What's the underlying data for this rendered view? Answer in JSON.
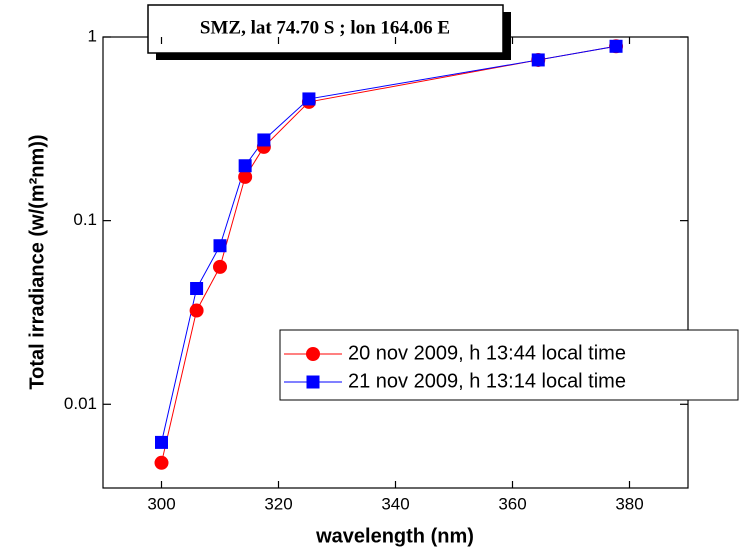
{
  "chart_data": {
    "type": "line",
    "annotation": "SMZ, lat 74.70 S ; lon 164.06 E",
    "xlabel": "wavelength (nm)",
    "ylabel": "Total irradiance (w/(m²nm))",
    "x": [
      300,
      306,
      310,
      314.3,
      317.5,
      325.2,
      364.4,
      377.7
    ],
    "series": [
      {
        "name": "20 nov 2009, h 13:44 local time",
        "color": "#ff0000",
        "marker": "circle",
        "values": [
          0.0048,
          0.0324,
          0.056,
          0.173,
          0.252,
          0.443,
          0.75,
          0.89
        ]
      },
      {
        "name": "21 nov 2009, h 13:14 local time",
        "color": "#0000ff",
        "marker": "square",
        "values": [
          0.0062,
          0.0427,
          0.073,
          0.199,
          0.275,
          0.46,
          0.75,
          0.89
        ]
      }
    ],
    "xlim": [
      290,
      390
    ],
    "xticks": [
      300,
      320,
      340,
      360,
      380
    ],
    "ylim": [
      0.0035,
      1
    ],
    "yticks": [
      0.01,
      0.1,
      1
    ],
    "ylog": true,
    "grid": false
  }
}
